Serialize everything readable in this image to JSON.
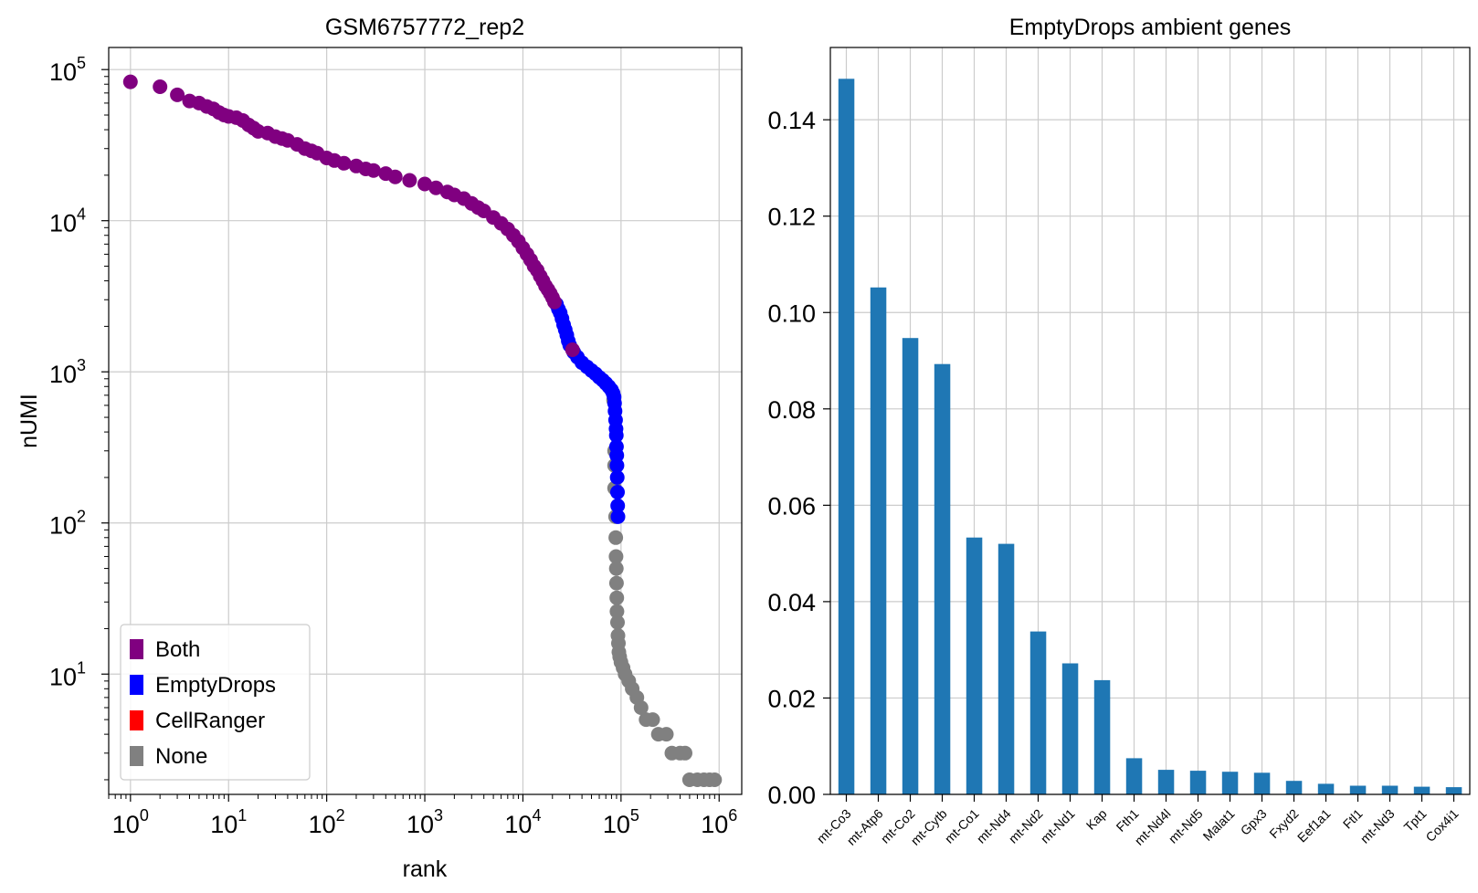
{
  "chart_data": [
    {
      "type": "scatter",
      "title": "GSM6757772_rep2",
      "xlabel": "rank",
      "ylabel": "nUMI",
      "xscale": "log",
      "yscale": "log",
      "xlim": [
        0.6,
        1700000
      ],
      "ylim": [
        1.6,
        140000
      ],
      "grid": true,
      "legend_position": "lower-left",
      "x_ticks": [
        {
          "value": 1,
          "base": "10",
          "exp": "0"
        },
        {
          "value": 10,
          "base": "10",
          "exp": "1"
        },
        {
          "value": 100,
          "base": "10",
          "exp": "2"
        },
        {
          "value": 1000,
          "base": "10",
          "exp": "3"
        },
        {
          "value": 10000,
          "base": "10",
          "exp": "4"
        },
        {
          "value": 100000,
          "base": "10",
          "exp": "5"
        },
        {
          "value": 1000000,
          "base": "10",
          "exp": "6"
        }
      ],
      "y_ticks": [
        {
          "value": 10,
          "base": "10",
          "exp": "1"
        },
        {
          "value": 100,
          "base": "10",
          "exp": "2"
        },
        {
          "value": 1000,
          "base": "10",
          "exp": "3"
        },
        {
          "value": 10000,
          "base": "10",
          "exp": "4"
        },
        {
          "value": 100000,
          "base": "10",
          "exp": "5"
        }
      ],
      "series": [
        {
          "name": "Both",
          "color": "#800080",
          "points": [
            [
              1,
              83000
            ],
            [
              2,
              77000
            ],
            [
              3,
              68000
            ],
            [
              4,
              62000
            ],
            [
              5,
              60000
            ],
            [
              6,
              57000
            ],
            [
              7,
              55000
            ],
            [
              8,
              52000
            ],
            [
              9,
              50000
            ],
            [
              10,
              49000
            ],
            [
              12,
              48000
            ],
            [
              14,
              46000
            ],
            [
              16,
              43000
            ],
            [
              18,
              41000
            ],
            [
              20,
              39000
            ],
            [
              25,
              38000
            ],
            [
              30,
              36000
            ],
            [
              35,
              35000
            ],
            [
              40,
              34000
            ],
            [
              50,
              32000
            ],
            [
              60,
              30000
            ],
            [
              70,
              29000
            ],
            [
              80,
              28000
            ],
            [
              100,
              26000
            ],
            [
              120,
              25000
            ],
            [
              150,
              24000
            ],
            [
              200,
              23000
            ],
            [
              250,
              22000
            ],
            [
              300,
              21500
            ],
            [
              400,
              20500
            ],
            [
              500,
              19500
            ],
            [
              700,
              18500
            ],
            [
              1000,
              17500
            ],
            [
              1300,
              16500
            ],
            [
              1700,
              15500
            ],
            [
              2000,
              14800
            ],
            [
              2500,
              14000
            ],
            [
              3000,
              13000
            ],
            [
              3500,
              12200
            ],
            [
              4000,
              11600
            ],
            [
              5000,
              10500
            ],
            [
              6000,
              9600
            ],
            [
              7000,
              8800
            ],
            [
              8000,
              8000
            ],
            [
              9000,
              7300
            ],
            [
              10000,
              6600
            ],
            [
              11000,
              6000
            ],
            [
              12000,
              5500
            ],
            [
              13000,
              5000
            ],
            [
              14000,
              4700
            ],
            [
              15000,
              4300
            ],
            [
              16000,
              4000
            ],
            [
              17000,
              3700
            ],
            [
              18000,
              3500
            ],
            [
              19000,
              3300
            ],
            [
              20000,
              3100
            ],
            [
              21000,
              2900
            ],
            [
              32000,
              1400
            ]
          ]
        },
        {
          "name": "EmptyDrops",
          "color": "#0000ff",
          "points": [
            [
              22000,
              2800
            ],
            [
              23000,
              2600
            ],
            [
              24000,
              2450
            ],
            [
              25000,
              2250
            ],
            [
              26000,
              2050
            ],
            [
              27000,
              1900
            ],
            [
              28000,
              1750
            ],
            [
              29000,
              1600
            ],
            [
              30000,
              1500
            ],
            [
              33000,
              1350
            ],
            [
              36000,
              1250
            ],
            [
              40000,
              1150
            ],
            [
              45000,
              1080
            ],
            [
              50000,
              1020
            ],
            [
              55000,
              970
            ],
            [
              60000,
              920
            ],
            [
              65000,
              880
            ],
            [
              70000,
              840
            ],
            [
              75000,
              800
            ],
            [
              80000,
              760
            ],
            [
              83000,
              720
            ],
            [
              85000,
              680
            ],
            [
              86000,
              620
            ],
            [
              87000,
              550
            ],
            [
              88000,
              480
            ],
            [
              89000,
              420
            ],
            [
              89500,
              380
            ],
            [
              90000,
              320
            ],
            [
              90500,
              280
            ],
            [
              91000,
              240
            ],
            [
              91500,
              200
            ],
            [
              92000,
              160
            ],
            [
              92500,
              130
            ],
            [
              93000,
              110
            ]
          ]
        },
        {
          "name": "CellRanger",
          "color": "#ff0000",
          "points": []
        },
        {
          "name": "None",
          "color": "#808080",
          "points": [
            [
              84000,
              650
            ],
            [
              86000,
              300
            ],
            [
              86000,
              240
            ],
            [
              86000,
              170
            ],
            [
              88000,
              110
            ],
            [
              88500,
              80
            ],
            [
              89000,
              60
            ],
            [
              89500,
              50
            ],
            [
              90000,
              40
            ],
            [
              90500,
              32
            ],
            [
              91000,
              26
            ],
            [
              92000,
              22
            ],
            [
              93000,
              18
            ],
            [
              94000,
              16
            ],
            [
              95000,
              14
            ],
            [
              97000,
              13
            ],
            [
              100000,
              12
            ],
            [
              105000,
              11
            ],
            [
              110000,
              10
            ],
            [
              120000,
              9
            ],
            [
              130000,
              8
            ],
            [
              145000,
              7
            ],
            [
              160000,
              6
            ],
            [
              180000,
              5
            ],
            [
              210000,
              5
            ],
            [
              240000,
              4
            ],
            [
              290000,
              4
            ],
            [
              330000,
              3
            ],
            [
              400000,
              3
            ],
            [
              450000,
              3
            ],
            [
              500000,
              2
            ],
            [
              600000,
              2
            ],
            [
              700000,
              2
            ],
            [
              800000,
              2
            ],
            [
              900000,
              2
            ]
          ]
        }
      ]
    },
    {
      "type": "bar",
      "title": "EmptyDrops ambient genes",
      "xlabel": "",
      "ylabel": "",
      "ylim": [
        0,
        0.155
      ],
      "grid": true,
      "color": "#1f77b4",
      "y_ticks": [
        "0.00",
        "0.02",
        "0.04",
        "0.06",
        "0.08",
        "0.10",
        "0.12",
        "0.14"
      ],
      "categories": [
        "mt-Co3",
        "mt-Atp6",
        "mt-Co2",
        "mt-Cytb",
        "mt-Co1",
        "mt-Nd4",
        "mt-Nd2",
        "mt-Nd1",
        "Kap",
        "Fth1",
        "mt-Nd4l",
        "mt-Nd5",
        "Malat1",
        "Gpx3",
        "Fxyd2",
        "Eef1a1",
        "Ftl1",
        "mt-Nd3",
        "Tpt1",
        "Cox4i1"
      ],
      "values": [
        0.1485,
        0.1052,
        0.0947,
        0.0893,
        0.0533,
        0.052,
        0.0338,
        0.0272,
        0.0237,
        0.0075,
        0.0051,
        0.0049,
        0.0047,
        0.0045,
        0.0028,
        0.0022,
        0.0018,
        0.0018,
        0.0016,
        0.0015
      ]
    }
  ]
}
